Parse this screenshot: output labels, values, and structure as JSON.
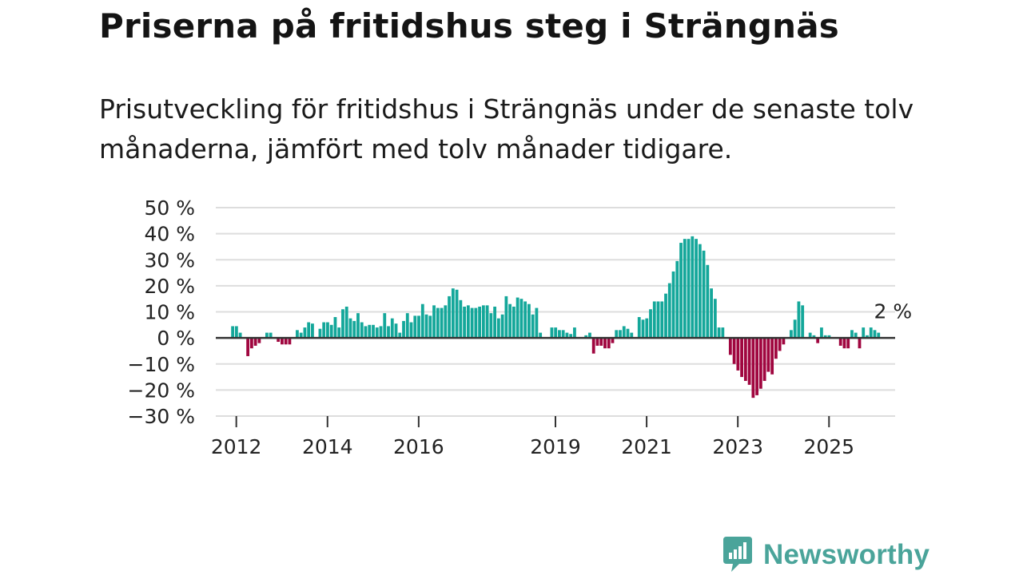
{
  "header": {
    "title": "Priserna på fritidshus steg i Strängnäs",
    "subtitle": "Prisutveckling för fritidshus i Strängnäs under de senaste tolv månaderna, jämfört med tolv månader tidigare."
  },
  "brand": {
    "name": "Newsworthy",
    "color": "#4aa49a"
  },
  "colors": {
    "positive": "#14a79a",
    "negative": "#a0063f",
    "grid": "#dddddd",
    "zero_line": "#333333"
  },
  "chart_data": {
    "type": "bar",
    "title": "Priserna på fritidshus steg i Strängnäs",
    "xlabel": "",
    "ylabel": "",
    "ylim": [
      -30,
      50
    ],
    "y_ticks": [
      50,
      40,
      30,
      20,
      10,
      0,
      -10,
      -20,
      -30
    ],
    "y_tick_labels": [
      "50 %",
      "40 %",
      "30 %",
      "20 %",
      "10 %",
      "0 %",
      "−10 %",
      "−20 %",
      "−30 %"
    ],
    "x_ticks": [
      {
        "label": "2012",
        "x": 2012.0
      },
      {
        "label": "2014",
        "x": 2014.0
      },
      {
        "label": "2016",
        "x": 2016.0
      },
      {
        "label": "2019",
        "x": 2019.0
      },
      {
        "label": "2021",
        "x": 2021.0
      },
      {
        "label": "2023",
        "x": 2023.0
      },
      {
        "label": "2025",
        "x": 2025.0
      }
    ],
    "x_start": 2011.92,
    "x_step": 0.08333,
    "values": [
      4.5,
      4.5,
      2,
      0,
      -7,
      -4,
      -3,
      -2,
      0,
      2,
      2,
      0,
      -1.5,
      -2.5,
      -2.5,
      -2.5,
      0,
      3,
      2,
      4,
      6,
      5.5,
      0,
      3.5,
      6,
      6,
      5,
      8,
      4,
      11,
      12,
      7.5,
      6.5,
      9.5,
      6,
      4.5,
      5,
      5,
      4,
      4.5,
      9.5,
      4.5,
      7.5,
      5.5,
      2,
      6.5,
      9.5,
      6,
      8.5,
      8.5,
      13,
      9,
      8.5,
      12.5,
      11.5,
      11.5,
      12.5,
      16,
      19,
      18.5,
      14.5,
      12,
      12.5,
      11.5,
      11.5,
      12,
      12.5,
      12.5,
      9.5,
      12,
      7.5,
      9,
      16,
      13,
      12,
      15.5,
      15,
      14,
      13,
      9,
      11.5,
      2,
      0,
      0,
      4,
      4,
      3,
      3,
      2,
      1.5,
      4,
      0,
      0,
      1,
      2,
      -6,
      -3,
      -3,
      -4,
      -4,
      -2,
      3,
      3,
      4.5,
      3.5,
      2,
      0,
      8,
      7,
      7.5,
      11,
      14,
      14,
      14,
      17,
      21,
      25.5,
      29.5,
      36.5,
      38,
      38,
      39,
      38,
      36,
      33.5,
      28,
      19,
      15,
      4,
      4,
      0,
      -6.5,
      -10,
      -12.5,
      -15,
      -16.5,
      -18,
      -23,
      -22,
      -19.5,
      -16.5,
      -13,
      -14,
      -8,
      -5,
      -2.5,
      0,
      3,
      7,
      14,
      12.5,
      0,
      2,
      1,
      -2,
      4,
      1,
      1,
      0,
      0,
      -3,
      -4,
      -4,
      3,
      2,
      -4,
      4,
      1,
      4,
      3,
      2
    ],
    "annotations": [
      {
        "text": "2 %",
        "x": 2026.0,
        "y": 2
      }
    ]
  }
}
